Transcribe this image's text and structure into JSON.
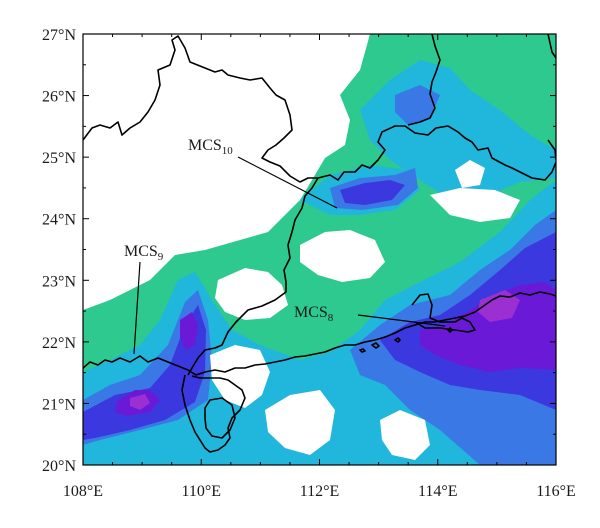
{
  "map": {
    "colors": {
      "level1": "#2ec98f",
      "level2": "#21b6dc",
      "level3": "#3a78e6",
      "level4": "#3c38df",
      "level5": "#6a1ad6",
      "level6": "#9b2fd2",
      "background": "#ffffff",
      "boundary": "#000000"
    },
    "lon_ticks": [
      {
        "value": 108,
        "label": "108°E"
      },
      {
        "value": 110,
        "label": "110°E"
      },
      {
        "value": 112,
        "label": "112°E"
      },
      {
        "value": 114,
        "label": "114°E"
      },
      {
        "value": 116,
        "label": "116°E"
      }
    ],
    "lat_ticks": [
      {
        "value": 20,
        "label": "20°N"
      },
      {
        "value": 21,
        "label": "21°N"
      },
      {
        "value": 22,
        "label": "22°N"
      },
      {
        "value": 23,
        "label": "23°N"
      },
      {
        "value": 24,
        "label": "24°N"
      },
      {
        "value": 25,
        "label": "25°N"
      },
      {
        "value": 26,
        "label": "26°N"
      },
      {
        "value": 27,
        "label": "27°N"
      }
    ],
    "extent": {
      "lon": [
        108,
        116
      ],
      "lat": [
        20,
        27
      ]
    },
    "annotations": [
      {
        "id": "mcs10",
        "base": "MCS",
        "sub": "10",
        "target_lon": 112.35,
        "target_lat": 24.15
      },
      {
        "id": "mcs9",
        "base": "MCS",
        "sub": "9",
        "target_lon": 108.9,
        "target_lat": 21.65
      },
      {
        "id": "mcs8",
        "base": "MCS",
        "sub": "8",
        "target_lon": 114.1,
        "target_lat": 22.25
      }
    ]
  }
}
